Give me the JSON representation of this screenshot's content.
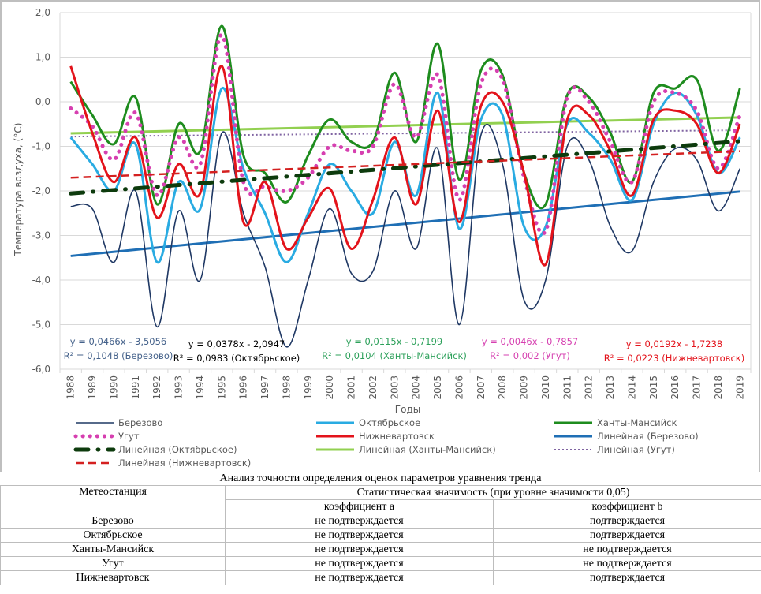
{
  "chart_data": {
    "type": "line",
    "xlabel": "Годы",
    "ylabel": "Температура воздуха, (°С)",
    "ylim": [
      -6.0,
      2.0
    ],
    "yticks": [
      "2,0",
      "1,0",
      "0,0",
      "-1,0",
      "-2,0",
      "-3,0",
      "-4,0",
      "-5,0",
      "-6,0"
    ],
    "grid": true,
    "legend_placement": "bottom",
    "x": [
      1988,
      1989,
      1990,
      1991,
      1992,
      1993,
      1994,
      1995,
      1996,
      1997,
      1998,
      1999,
      2000,
      2001,
      2002,
      2003,
      2004,
      2005,
      2006,
      2007,
      2008,
      2009,
      2010,
      2011,
      2012,
      2013,
      2014,
      2015,
      2016,
      2017,
      2018,
      2019
    ],
    "series": [
      {
        "name": "Березово",
        "color": "#1f3864",
        "style": "solid-thin",
        "values": [
          -2.35,
          -2.4,
          -3.6,
          -2.0,
          -5.05,
          -2.45,
          -4.0,
          -0.7,
          -2.5,
          -3.7,
          -5.5,
          -4.0,
          -2.4,
          -3.85,
          -3.8,
          -2.0,
          -3.3,
          -1.05,
          -5.0,
          -0.75,
          -1.4,
          -4.45,
          -4.0,
          -1.0,
          -1.3,
          -2.8,
          -3.35,
          -1.8,
          -1.05,
          -1.3,
          -2.45,
          -1.5
        ]
      },
      {
        "name": "Октябрьское",
        "color": "#29abe2",
        "style": "solid",
        "values": [
          -0.8,
          -1.4,
          -2.0,
          -0.95,
          -3.6,
          -1.8,
          -2.4,
          0.3,
          -1.5,
          -2.5,
          -3.6,
          -2.5,
          -1.4,
          -2.0,
          -2.5,
          -0.9,
          -2.1,
          0.2,
          -2.85,
          -0.4,
          -0.3,
          -2.8,
          -2.8,
          -0.5,
          -0.7,
          -1.3,
          -2.2,
          -0.5,
          0.2,
          -0.3,
          -1.6,
          -0.8
        ]
      },
      {
        "name": "Ханты-Мансийск",
        "color": "#1e8c1e",
        "style": "solid",
        "values": [
          0.45,
          -0.3,
          -0.95,
          0.1,
          -2.3,
          -0.5,
          -1.1,
          1.7,
          -1.2,
          -1.6,
          -2.25,
          -1.2,
          -0.4,
          -0.9,
          -0.9,
          0.65,
          -0.9,
          1.3,
          -1.75,
          0.7,
          0.6,
          -1.6,
          -2.3,
          0.15,
          0.1,
          -0.7,
          -1.8,
          0.2,
          0.3,
          0.5,
          -1.1,
          0.3
        ]
      },
      {
        "name": "Угут",
        "color": "#d63fb0",
        "style": "dots",
        "values": [
          -0.15,
          -0.55,
          -1.3,
          -0.25,
          -2.1,
          -0.8,
          -1.4,
          1.5,
          -1.8,
          -1.9,
          -2.0,
          -1.7,
          -1.0,
          -1.1,
          -1.0,
          0.4,
          -0.8,
          0.6,
          -2.2,
          0.4,
          0.5,
          -1.7,
          -2.9,
          0.1,
          0.0,
          -0.9,
          -1.8,
          0.0,
          0.2,
          -0.2,
          -1.5,
          -0.3
        ]
      },
      {
        "name": "Нижневартовск",
        "color": "#e3131b",
        "style": "solid",
        "values": [
          0.8,
          -0.7,
          -1.8,
          -0.8,
          -2.6,
          -1.4,
          -2.05,
          0.8,
          -2.7,
          -1.8,
          -3.3,
          -2.6,
          -1.95,
          -3.3,
          -2.2,
          -0.8,
          -2.3,
          -0.2,
          -2.7,
          -0.1,
          0.0,
          -1.6,
          -3.65,
          -0.4,
          -0.3,
          -1.1,
          -2.1,
          -0.4,
          -0.2,
          -0.5,
          -1.6,
          -0.5
        ]
      }
    ],
    "trendlines": [
      {
        "name": "Линейная (Березово)",
        "color": "#1f6fb5",
        "style": "solid",
        "slope": 0.0466,
        "intercept": -3.5056,
        "equation": "y = 0,0466x  - 3,5056",
        "r2": "R² = 0,1048  (Березово)",
        "label_color": "#44618a"
      },
      {
        "name": "Линейная (Октябрьское)",
        "color": "#0d3b0d",
        "style": "dashdot",
        "slope": 0.0378,
        "intercept": -2.0947,
        "equation": "y = 0,0378x  - 2,0947",
        "r2": "R² = 0,0983  (Октябрьское)",
        "label_color": "#000000"
      },
      {
        "name": "Линейная (Ханты-Мансийск)",
        "color": "#92d050",
        "style": "solid",
        "slope": 0.0115,
        "intercept": -0.7199,
        "equation": "y = 0,0115x  - 0,7199",
        "r2": "R² = 0,0104  (Ханты-Мансийск)",
        "label_color": "#2ca05a"
      },
      {
        "name": "Линейная (Угут)",
        "color": "#8064a2",
        "style": "dotted",
        "slope": 0.0046,
        "intercept": -0.7857,
        "equation": "y = 0,0046x  - 0,7857",
        "r2": "R² = 0,002  (Угут)",
        "label_color": "#d63fb0"
      },
      {
        "name": "Линейная (Нижневартовск)",
        "color": "#d42020",
        "style": "dashed",
        "slope": 0.0192,
        "intercept": -1.7238,
        "equation": "y = 0,0192x  - 1,7238",
        "r2": "R² = 0,0223  (Нижневартовск)",
        "label_color": "#e3131b"
      }
    ]
  },
  "table": {
    "caption": "Анализ точности определения оценок параметров уравнения тренда",
    "col_station": "Метеостанция",
    "col_group": "Статистическая значимость (при уровне значимости 0,05)",
    "col_a": "коэффициент a",
    "col_b": "коэффициент b",
    "rows": [
      {
        "station": "Березово",
        "a": "не подтверждается",
        "b": "подтверждается"
      },
      {
        "station": "Октябрьское",
        "a": "не подтверждается",
        "b": "подтверждается"
      },
      {
        "station": "Ханты-Мансийск",
        "a": "не подтверждается",
        "b": "не подтверждается"
      },
      {
        "station": "Угут",
        "a": "не подтверждается",
        "b": "не подтверждается"
      },
      {
        "station": "Нижневартовск",
        "a": "не подтверждается",
        "b": "подтверждается"
      }
    ]
  }
}
